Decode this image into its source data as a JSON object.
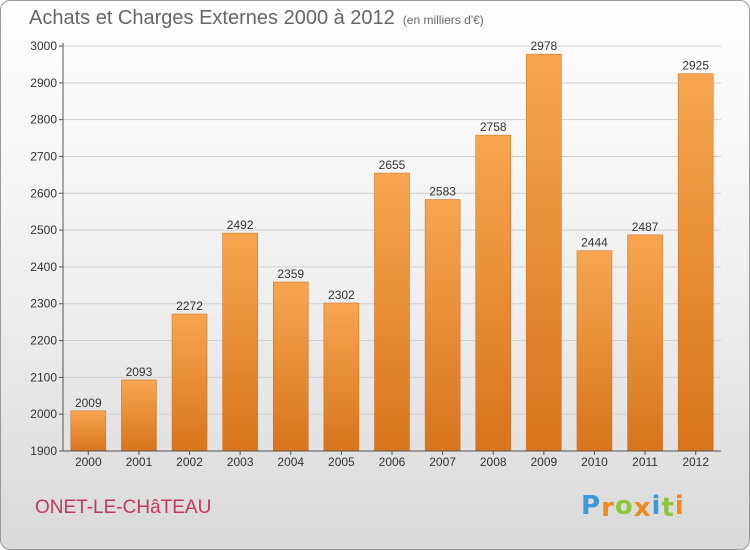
{
  "title": "Achats et Charges Externes 2000 à 2012",
  "unit": "(en milliers d'€)",
  "town": "ONET-LE-CHâTEAU",
  "logo": {
    "letters": [
      "P",
      "r",
      "o",
      "x",
      "i",
      "t",
      "i"
    ],
    "colors": [
      "#3b9ad9",
      "#f08a1c",
      "#8cc63f",
      "#f08a1c",
      "#3b9ad9",
      "#8cc63f",
      "#f08a1c"
    ]
  },
  "colors": {
    "bar_top": "#f7a64f",
    "bar_bottom": "#d8741c",
    "axis": "#555555",
    "grid": "#d0d0d0"
  },
  "chart_data": {
    "type": "bar",
    "title": "Achats et Charges Externes 2000 à 2012",
    "categories": [
      "2000",
      "2001",
      "2002",
      "2003",
      "2004",
      "2005",
      "2006",
      "2007",
      "2008",
      "2009",
      "2010",
      "2011",
      "2012"
    ],
    "values": [
      2009,
      2093,
      2272,
      2492,
      2359,
      2302,
      2655,
      2583,
      2758,
      2978,
      2444,
      2487,
      2925
    ],
    "ylim": [
      1900,
      3000
    ],
    "yticks": [
      1900,
      2000,
      2100,
      2200,
      2300,
      2400,
      2500,
      2600,
      2700,
      2800,
      2900,
      3000
    ],
    "grid": true,
    "xlabel": "",
    "ylabel": ""
  }
}
